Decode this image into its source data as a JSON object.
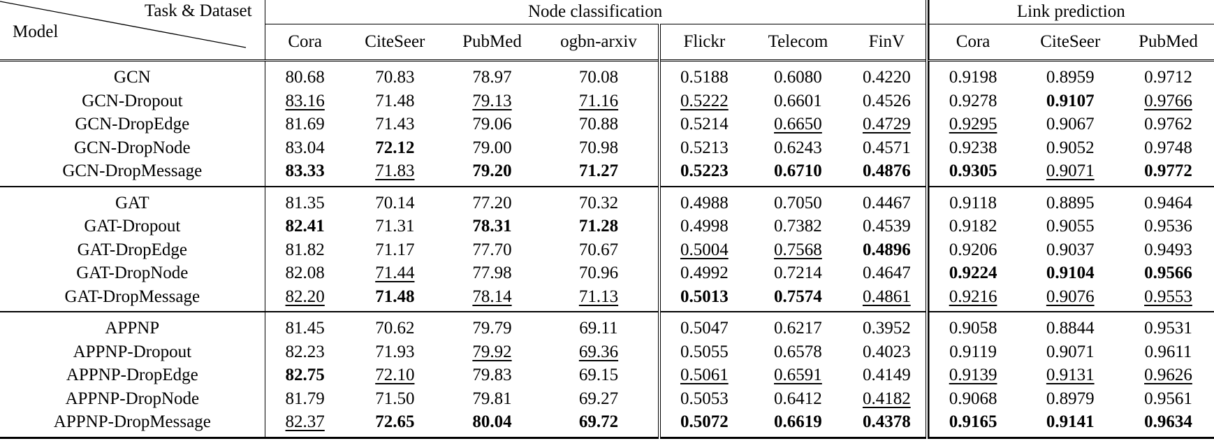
{
  "header": {
    "corner_top": "Task & Dataset",
    "corner_bottom": "Model",
    "groups": [
      {
        "label": "Node classification",
        "span": 7
      },
      {
        "label": "Link prediction",
        "span": 3
      }
    ],
    "columns": [
      "Cora",
      "CiteSeer",
      "PubMed",
      "ogbn-arxiv",
      "Flickr",
      "Telecom",
      "FinV",
      "Cora",
      "CiteSeer",
      "PubMed"
    ]
  },
  "legend": {
    "bold": "best",
    "underline": "second best"
  },
  "row_groups": [
    {
      "rows": [
        {
          "model": "GCN",
          "values": [
            "80.68",
            "70.83",
            "78.97",
            "70.08",
            "0.5188",
            "0.6080",
            "0.4220",
            "0.9198",
            "0.8959",
            "0.9712"
          ],
          "style": [
            "",
            "",
            "",
            "",
            "",
            "",
            "",
            "",
            "",
            ""
          ]
        },
        {
          "model": "GCN-Dropout",
          "values": [
            "83.16",
            "71.48",
            "79.13",
            "71.16",
            "0.5222",
            "0.6601",
            "0.4526",
            "0.9278",
            "0.9107",
            "0.9766"
          ],
          "style": [
            "u",
            "",
            "u",
            "u",
            "u",
            "",
            "",
            "",
            "b",
            "u"
          ]
        },
        {
          "model": "GCN-DropEdge",
          "values": [
            "81.69",
            "71.43",
            "79.06",
            "70.88",
            "0.5214",
            "0.6650",
            "0.4729",
            "0.9295",
            "0.9067",
            "0.9762"
          ],
          "style": [
            "",
            "",
            "",
            "",
            "",
            "u",
            "u",
            "u",
            "",
            ""
          ]
        },
        {
          "model": "GCN-DropNode",
          "values": [
            "83.04",
            "72.12",
            "79.00",
            "70.98",
            "0.5213",
            "0.6243",
            "0.4571",
            "0.9238",
            "0.9052",
            "0.9748"
          ],
          "style": [
            "",
            "b",
            "",
            "",
            "",
            "",
            "",
            "",
            "",
            ""
          ]
        },
        {
          "model": "GCN-DropMessage",
          "values": [
            "83.33",
            "71.83",
            "79.20",
            "71.27",
            "0.5223",
            "0.6710",
            "0.4876",
            "0.9305",
            "0.9071",
            "0.9772"
          ],
          "style": [
            "b",
            "u",
            "b",
            "b",
            "b",
            "b",
            "b",
            "b",
            "u",
            "b"
          ]
        }
      ]
    },
    {
      "rows": [
        {
          "model": "GAT",
          "values": [
            "81.35",
            "70.14",
            "77.20",
            "70.32",
            "0.4988",
            "0.7050",
            "0.4467",
            "0.9118",
            "0.8895",
            "0.9464"
          ],
          "style": [
            "",
            "",
            "",
            "",
            "",
            "",
            "",
            "",
            "",
            ""
          ]
        },
        {
          "model": "GAT-Dropout",
          "values": [
            "82.41",
            "71.31",
            "78.31",
            "71.28",
            "0.4998",
            "0.7382",
            "0.4539",
            "0.9182",
            "0.9055",
            "0.9536"
          ],
          "style": [
            "b",
            "",
            "b",
            "b",
            "",
            "",
            "",
            "",
            "",
            ""
          ]
        },
        {
          "model": "GAT-DropEdge",
          "values": [
            "81.82",
            "71.17",
            "77.70",
            "70.67",
            "0.5004",
            "0.7568",
            "0.4896",
            "0.9206",
            "0.9037",
            "0.9493"
          ],
          "style": [
            "",
            "",
            "",
            "",
            "u",
            "u",
            "b",
            "",
            "",
            ""
          ]
        },
        {
          "model": "GAT-DropNode",
          "values": [
            "82.08",
            "71.44",
            "77.98",
            "70.96",
            "0.4992",
            "0.7214",
            "0.4647",
            "0.9224",
            "0.9104",
            "0.9566"
          ],
          "style": [
            "",
            "u",
            "",
            "",
            "",
            "",
            "",
            "b",
            "b",
            "b"
          ]
        },
        {
          "model": "GAT-DropMessage",
          "values": [
            "82.20",
            "71.48",
            "78.14",
            "71.13",
            "0.5013",
            "0.7574",
            "0.4861",
            "0.9216",
            "0.9076",
            "0.9553"
          ],
          "style": [
            "u",
            "b",
            "u",
            "u",
            "b",
            "b",
            "u",
            "u",
            "u",
            "u"
          ]
        }
      ]
    },
    {
      "rows": [
        {
          "model": "APPNP",
          "values": [
            "81.45",
            "70.62",
            "79.79",
            "69.11",
            "0.5047",
            "0.6217",
            "0.3952",
            "0.9058",
            "0.8844",
            "0.9531"
          ],
          "style": [
            "",
            "",
            "",
            "",
            "",
            "",
            "",
            "",
            "",
            ""
          ]
        },
        {
          "model": "APPNP-Dropout",
          "values": [
            "82.23",
            "71.93",
            "79.92",
            "69.36",
            "0.5055",
            "0.6578",
            "0.4023",
            "0.9119",
            "0.9071",
            "0.9611"
          ],
          "style": [
            "",
            "",
            "u",
            "u",
            "",
            "",
            "",
            "",
            "",
            ""
          ]
        },
        {
          "model": "APPNP-DropEdge",
          "values": [
            "82.75",
            "72.10",
            "79.83",
            "69.15",
            "0.5061",
            "0.6591",
            "0.4149",
            "0.9139",
            "0.9131",
            "0.9626"
          ],
          "style": [
            "b",
            "u",
            "",
            "",
            "u",
            "u",
            "",
            "u",
            "u",
            "u"
          ]
        },
        {
          "model": "APPNP-DropNode",
          "values": [
            "81.79",
            "71.50",
            "79.81",
            "69.27",
            "0.5053",
            "0.6412",
            "0.4182",
            "0.9068",
            "0.8979",
            "0.9561"
          ],
          "style": [
            "",
            "",
            "",
            "",
            "",
            "",
            "u",
            "",
            "",
            ""
          ]
        },
        {
          "model": "APPNP-DropMessage",
          "values": [
            "82.37",
            "72.65",
            "80.04",
            "69.72",
            "0.5072",
            "0.6619",
            "0.4378",
            "0.9165",
            "0.9141",
            "0.9634"
          ],
          "style": [
            "u",
            "b",
            "b",
            "b",
            "b",
            "b",
            "b",
            "b",
            "b",
            "b"
          ]
        }
      ]
    }
  ]
}
